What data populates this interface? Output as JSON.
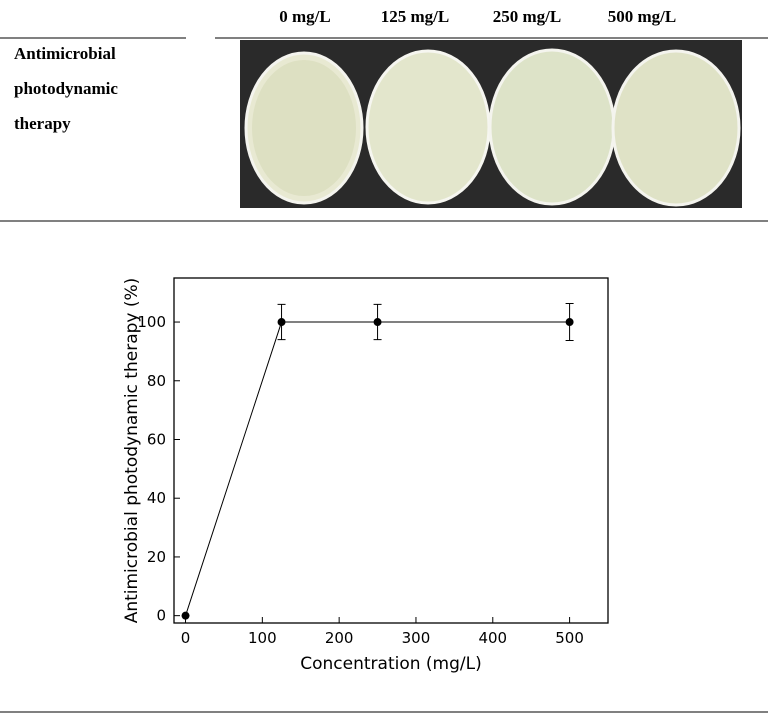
{
  "table": {
    "columns": [
      "0 mg/L",
      "125 mg/L",
      "250 mg/L",
      "500 mg/L"
    ],
    "row_label": "Antimicrobial photodynamic therapy"
  },
  "chart_data": {
    "type": "line",
    "x_label": "Concentration (mg/L)",
    "y_label": "Antimicrobial photodynamic therapy (%)",
    "x": [
      0,
      125,
      250,
      500
    ],
    "series": [
      {
        "name": "Antimicrobial photodynamic therapy",
        "color": "#000000",
        "values": [
          0,
          100,
          100,
          100
        ],
        "errors": [
          0,
          6,
          6,
          6.3
        ]
      }
    ],
    "xlim": [
      -15,
      550
    ],
    "xticks": [
      0,
      100,
      200,
      300,
      400,
      500
    ],
    "ylim": [
      -2.5,
      115
    ],
    "yticks": [
      0,
      20,
      40,
      60,
      80,
      100
    ]
  }
}
